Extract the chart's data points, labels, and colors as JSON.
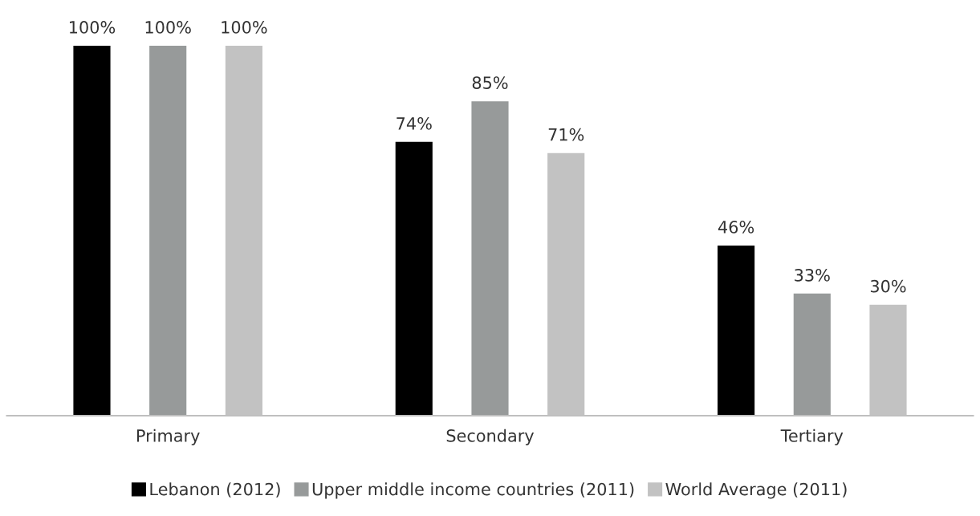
{
  "chart_data": {
    "type": "bar",
    "categories": [
      "Primary",
      "Secondary",
      "Tertiary"
    ],
    "series": [
      {
        "name": "Lebanon (2012)",
        "color": "#000000",
        "values": [
          100,
          74,
          46
        ],
        "value_labels": [
          "100%",
          "74%",
          "46%"
        ]
      },
      {
        "name": "Upper middle income countries (2011)",
        "color": "#979a9a",
        "values": [
          100,
          85,
          33
        ],
        "value_labels": [
          "100%",
          "85%",
          "33%"
        ]
      },
      {
        "name": "World Average (2011)",
        "color": "#c2c2c2",
        "values": [
          100,
          71,
          30
        ],
        "value_labels": [
          "100%",
          "71%",
          "30%"
        ]
      }
    ],
    "legend": "bottom",
    "grid": false
  }
}
